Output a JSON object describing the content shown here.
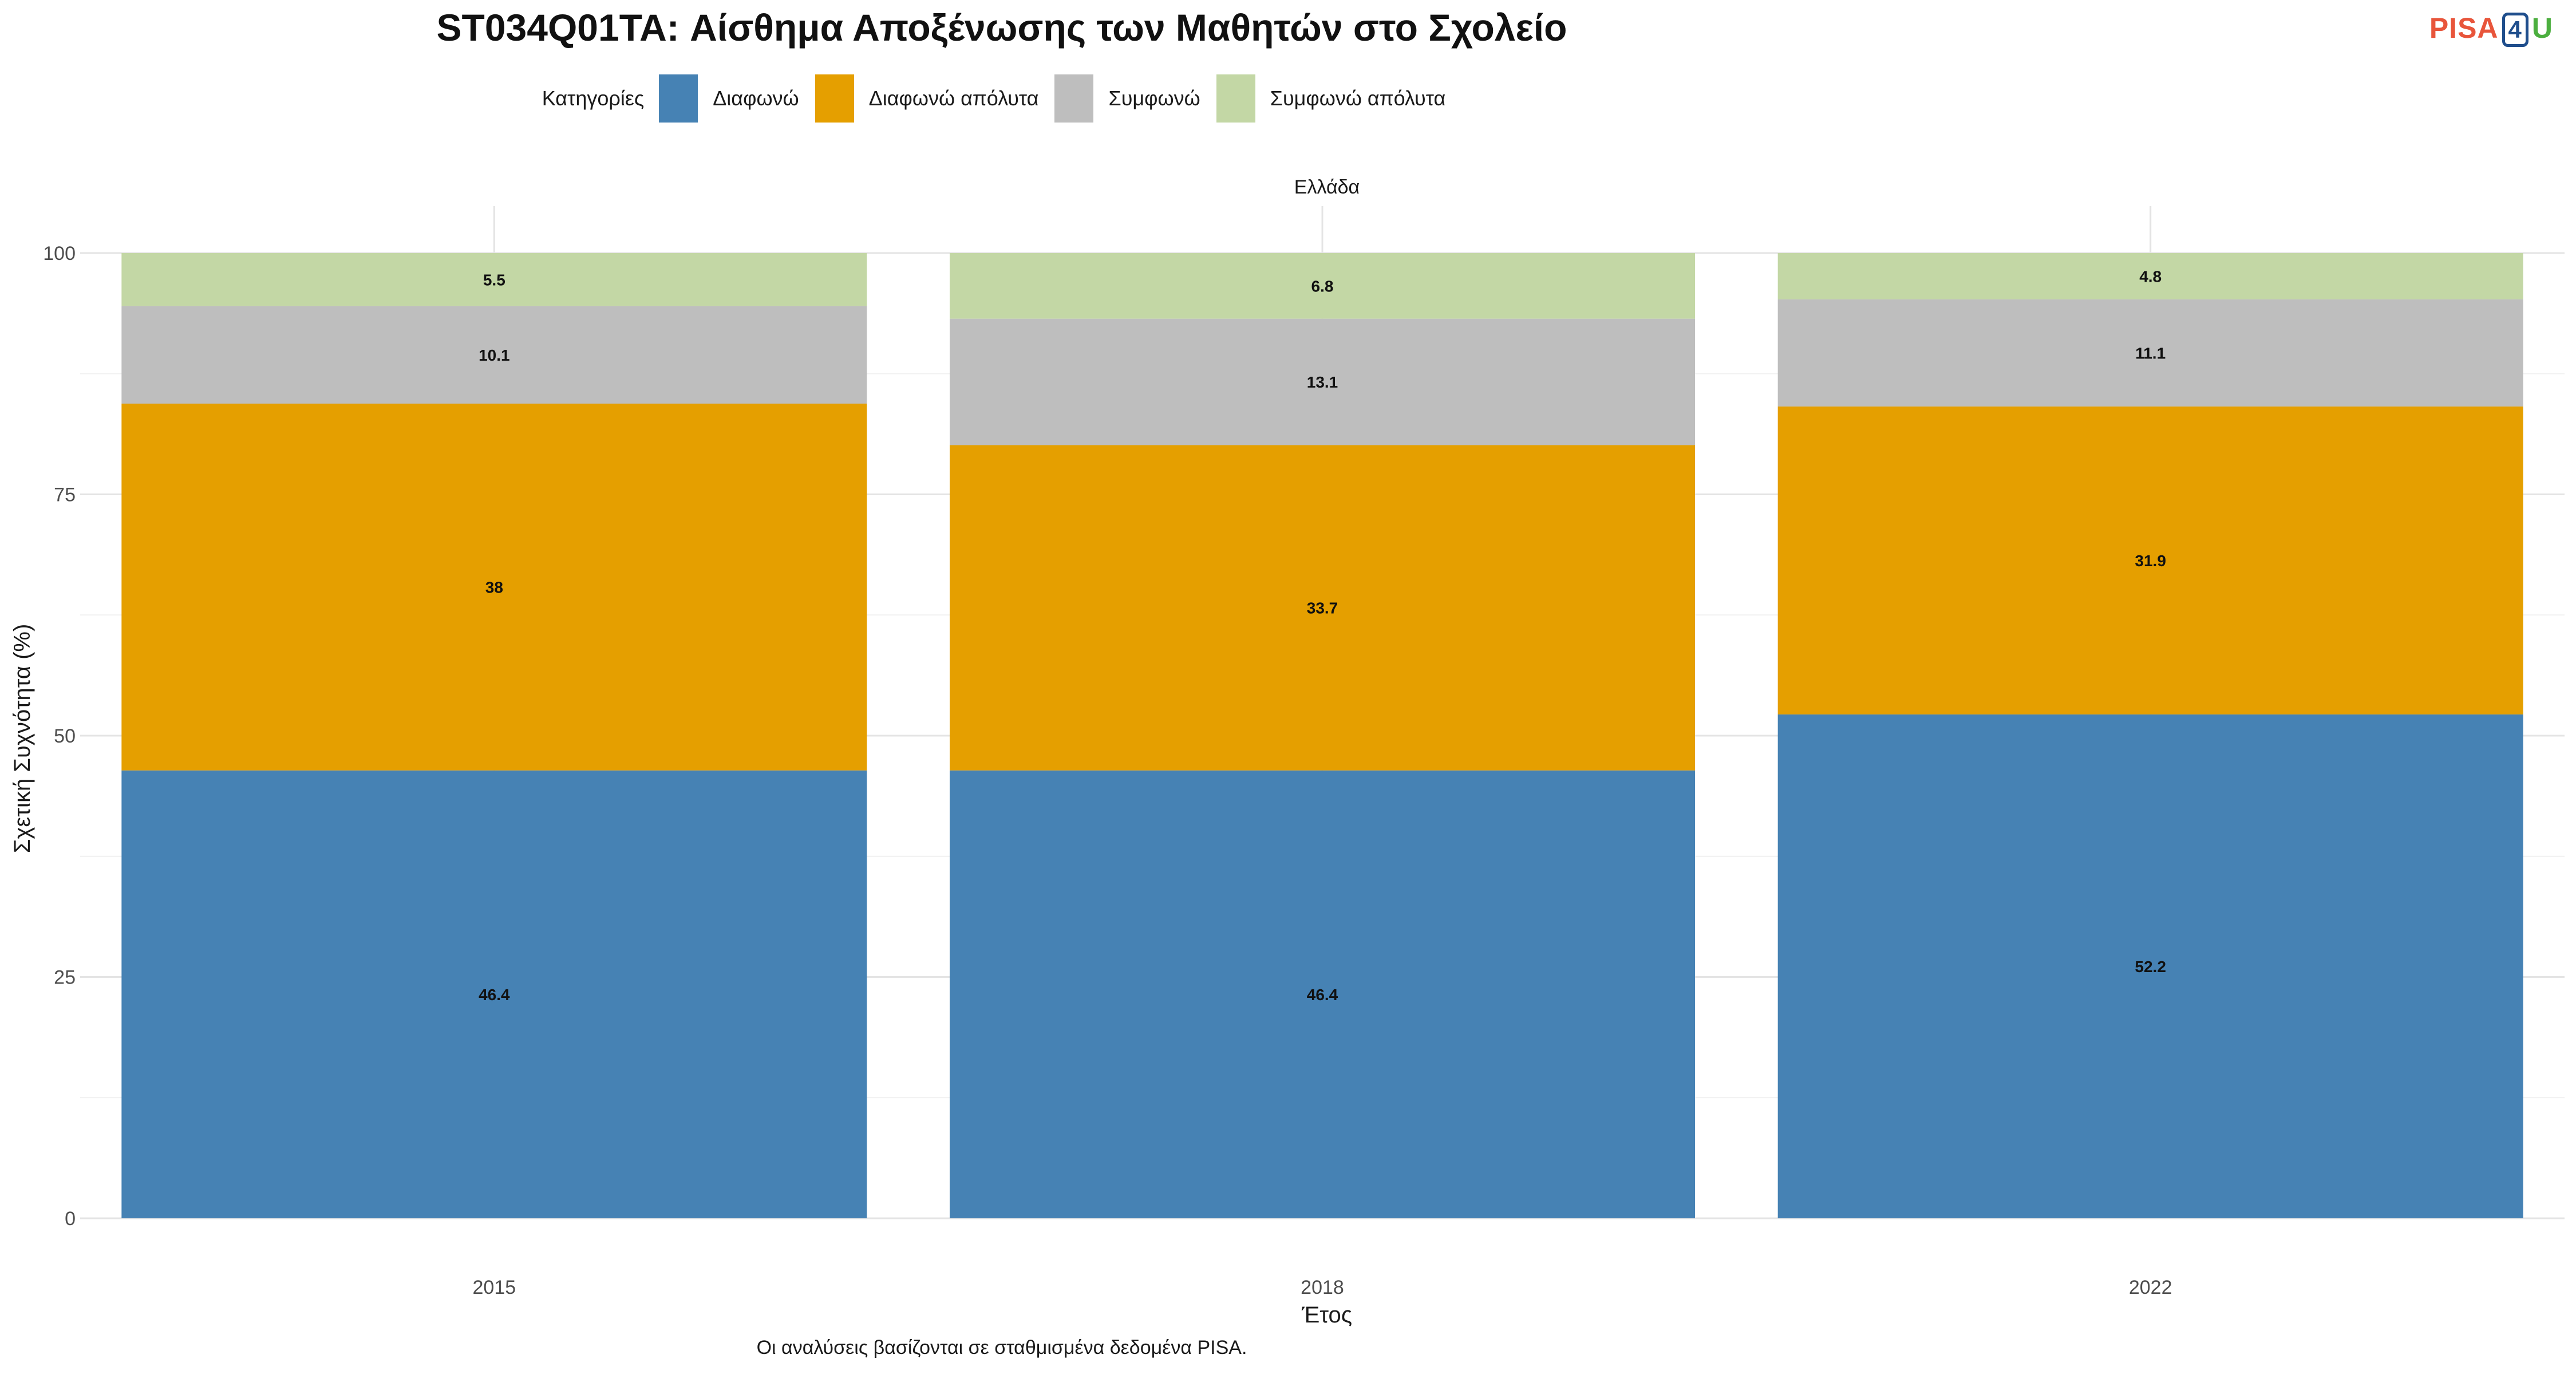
{
  "chart_data": {
    "type": "bar",
    "stacked": true,
    "title": "ST034Q01TA: Αίσθημα Αποξένωσης των Μαθητών στο Σχολείο",
    "facet_label": "Ελλάδα",
    "xlabel": "Έτος",
    "ylabel": "Σχετική Συχνότητα (%)",
    "caption": "Οι αναλύσεις βασίζονται σε σταθμισμένα δεδομένα PISA.",
    "legend_title": "Κατηγορίες",
    "legend_position": "top",
    "categories": [
      "2015",
      "2018",
      "2022"
    ],
    "ylim": [
      0,
      100
    ],
    "yticks": [
      0,
      25,
      50,
      75,
      100
    ],
    "grid": true,
    "series": [
      {
        "name": "Διαφωνώ",
        "color": "#4682b4",
        "values": [
          46.4,
          46.4,
          52.2
        ],
        "labels": [
          "46.4",
          "46.4",
          "52.2"
        ]
      },
      {
        "name": "Διαφωνώ απόλυτα",
        "color": "#e59f00",
        "values": [
          38.0,
          33.7,
          31.9
        ],
        "labels": [
          "38",
          "33.7",
          "31.9"
        ]
      },
      {
        "name": "Συμφωνώ",
        "color": "#bebebe",
        "values": [
          10.1,
          13.1,
          11.1
        ],
        "labels": [
          "10.1",
          "13.1",
          "11.1"
        ]
      },
      {
        "name": "Συμφωνώ απόλυτα",
        "color": "#c3d7a5",
        "values": [
          5.5,
          6.8,
          4.8
        ],
        "labels": [
          "5.5",
          "6.8",
          "4.8"
        ]
      }
    ]
  },
  "logo": {
    "part1": "PISA",
    "part2": "4",
    "part3": "U"
  }
}
